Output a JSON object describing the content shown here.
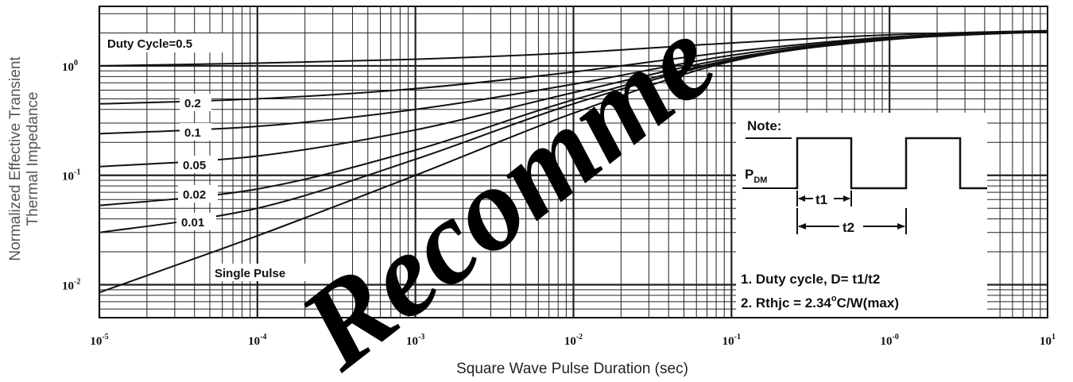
{
  "chart_data": {
    "type": "line",
    "title": "",
    "xlabel": "Square Wave Pulse Duration (sec)",
    "ylabel_lines": [
      "Normalized Effective Transient",
      "Thermal Impedance"
    ],
    "x_scale": "log",
    "y_scale": "log",
    "xlim": [
      1e-05,
      10
    ],
    "ylim": [
      0.005,
      3.5
    ],
    "grid": true,
    "x_ticks": [
      {
        "value": 1e-05,
        "base": "10",
        "exp": "-5"
      },
      {
        "value": 0.0001,
        "base": "10",
        "exp": "-4"
      },
      {
        "value": 0.001,
        "base": "10",
        "exp": "-3"
      },
      {
        "value": 0.01,
        "base": "10",
        "exp": "-2"
      },
      {
        "value": 0.1,
        "base": "10",
        "exp": "-1"
      },
      {
        "value": 1,
        "base": "10",
        "exp": "-0"
      },
      {
        "value": 10,
        "base": "10",
        "exp": "1"
      }
    ],
    "y_ticks": [
      {
        "value": 1,
        "base": "10",
        "exp": "0"
      },
      {
        "value": 0.1,
        "base": "10",
        "exp": "-1"
      },
      {
        "value": 0.01,
        "base": "10",
        "exp": "-2"
      }
    ],
    "series": [
      {
        "name": "Duty Cycle=0.5",
        "x": [
          1e-05,
          0.0001,
          0.001,
          0.01,
          0.1,
          1,
          10
        ],
        "y": [
          1.0,
          1.06,
          1.15,
          1.32,
          1.62,
          1.92,
          2.1
        ]
      },
      {
        "name": "0.2",
        "x": [
          1e-05,
          0.0001,
          0.001,
          0.01,
          0.1,
          1,
          10
        ],
        "y": [
          0.45,
          0.5,
          0.62,
          0.88,
          1.35,
          1.83,
          2.09
        ]
      },
      {
        "name": "0.1",
        "x": [
          1e-05,
          0.0001,
          0.001,
          0.01,
          0.1,
          1,
          10
        ],
        "y": [
          0.24,
          0.28,
          0.4,
          0.68,
          1.25,
          1.8,
          2.08
        ]
      },
      {
        "name": "0.05",
        "x": [
          1e-05,
          0.0001,
          0.001,
          0.01,
          0.1,
          1,
          10
        ],
        "y": [
          0.12,
          0.15,
          0.26,
          0.57,
          1.18,
          1.78,
          2.07
        ]
      },
      {
        "name": "0.02",
        "x": [
          1e-05,
          0.0001,
          0.001,
          0.01,
          0.1,
          1,
          10
        ],
        "y": [
          0.053,
          0.075,
          0.17,
          0.49,
          1.14,
          1.76,
          2.06
        ]
      },
      {
        "name": "0.01",
        "x": [
          1e-05,
          0.0001,
          0.001,
          0.01,
          0.1,
          1,
          10
        ],
        "y": [
          0.03,
          0.05,
          0.14,
          0.45,
          1.12,
          1.75,
          2.06
        ]
      },
      {
        "name": "Single Pulse",
        "x": [
          1e-05,
          0.0001,
          0.001,
          0.01,
          0.1,
          1,
          10
        ],
        "y": [
          0.0085,
          0.028,
          0.1,
          0.37,
          1.1,
          1.74,
          2.05
        ]
      }
    ],
    "note": {
      "title": "Note:",
      "pdm_label": "P",
      "pdm_sub": "DM",
      "t1_label": "t1",
      "t2_label": "t2",
      "line1": "1. Duty cycle, D= t1/t2",
      "line2_prefix": "2. Rthjc = 2.34",
      "line2_degree": "o",
      "line2_suffix": "C/W(max)"
    },
    "watermark": "Recomme"
  },
  "colors": {
    "line": "#111111",
    "grid": "#222222",
    "background": "#ffffff",
    "watermark": "#000000"
  }
}
